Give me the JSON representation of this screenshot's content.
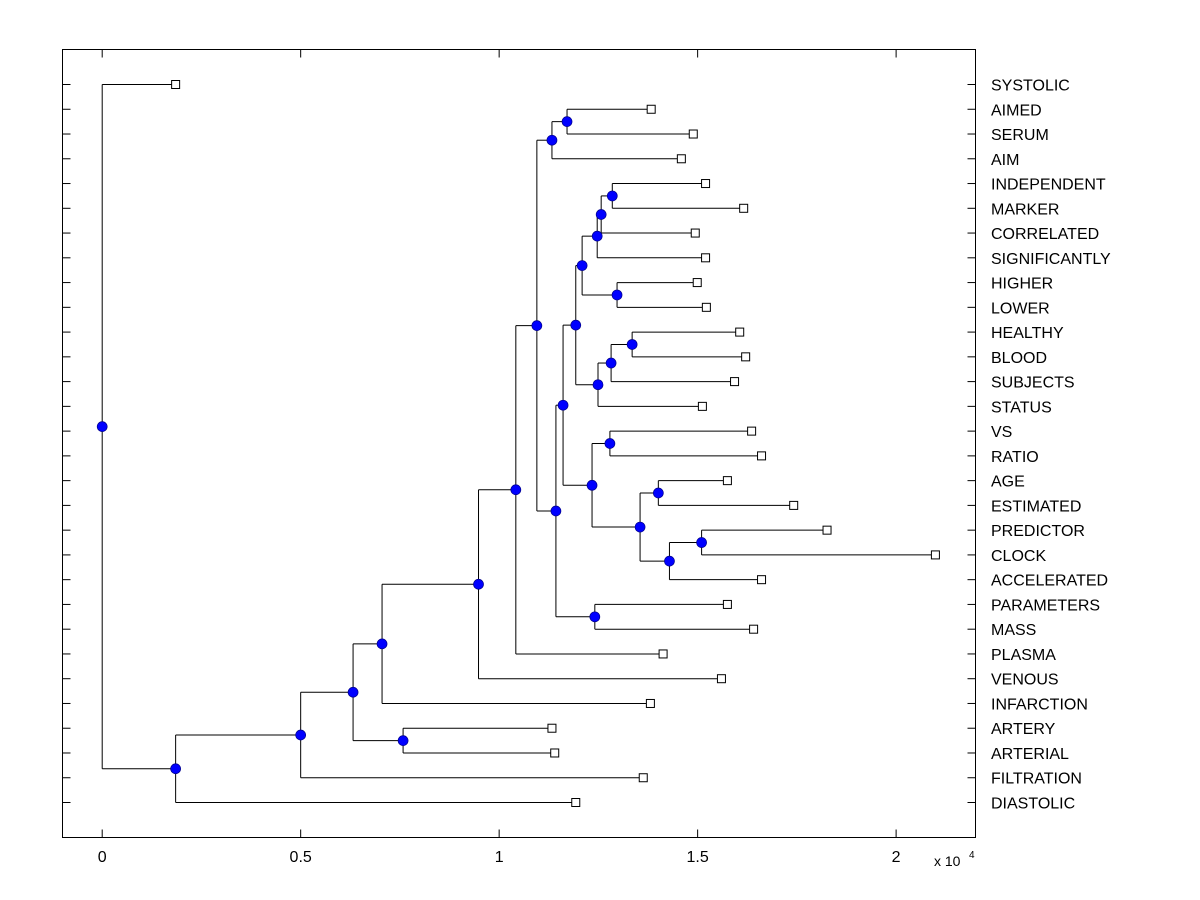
{
  "chart_data": {
    "type": "dendrogram",
    "title": "",
    "xlabel": "",
    "ylabel": "",
    "x_multiplier_label": "x 10",
    "x_multiplier_exponent": "4",
    "xlim": [
      -0.1,
      2.2
    ],
    "x_ticks": [
      0,
      0.5,
      1,
      1.5,
      2
    ],
    "x_tick_labels": [
      "0",
      "0.5",
      "1",
      "1.5",
      "2"
    ],
    "orientation": "left-to-right",
    "labels_side": "right",
    "colors": {
      "node": "#0000ff",
      "line": "#000000",
      "leaf_marker": "#ffffff"
    },
    "leaves": [
      {
        "label": "SYSTOLIC",
        "x": 0.185
      },
      {
        "label": "AIMED",
        "x": 1.383
      },
      {
        "label": "SERUM",
        "x": 1.489
      },
      {
        "label": "AIM",
        "x": 1.459
      },
      {
        "label": "INDEPENDENT",
        "x": 1.52
      },
      {
        "label": "MARKER",
        "x": 1.616
      },
      {
        "label": "CORRELATED",
        "x": 1.494
      },
      {
        "label": "SIGNIFICANTLY",
        "x": 1.52
      },
      {
        "label": "HIGHER",
        "x": 1.499
      },
      {
        "label": "LOWER",
        "x": 1.522
      },
      {
        "label": "HEALTHY",
        "x": 1.606
      },
      {
        "label": "BLOOD",
        "x": 1.621
      },
      {
        "label": "SUBJECTS",
        "x": 1.593
      },
      {
        "label": "STATUS",
        "x": 1.512
      },
      {
        "label": "VS",
        "x": 1.636
      },
      {
        "label": "RATIO",
        "x": 1.661
      },
      {
        "label": "AGE",
        "x": 1.575
      },
      {
        "label": "ESTIMATED",
        "x": 1.742
      },
      {
        "label": "PREDICTOR",
        "x": 1.826
      },
      {
        "label": "CLOCK",
        "x": 2.099
      },
      {
        "label": "ACCELERATED",
        "x": 1.661
      },
      {
        "label": "PARAMETERS",
        "x": 1.575
      },
      {
        "label": "MASS",
        "x": 1.641
      },
      {
        "label": "PLASMA",
        "x": 1.413
      },
      {
        "label": "VENOUS",
        "x": 1.56
      },
      {
        "label": "INFARCTION",
        "x": 1.381
      },
      {
        "label": "ARTERY",
        "x": 1.133
      },
      {
        "label": "ARTERIAL",
        "x": 1.14
      },
      {
        "label": "FILTRATION",
        "x": 1.363
      },
      {
        "label": "DIASTOLIC",
        "x": 1.193
      }
    ],
    "nodes": [
      {
        "id": "n_aimed_serum",
        "x": 1.171,
        "children": [
          "AIMED",
          "SERUM"
        ]
      },
      {
        "id": "n_aim",
        "x": 1.133,
        "children": [
          "n_aimed_serum",
          "AIM"
        ]
      },
      {
        "id": "n_indep_marker",
        "x": 1.285,
        "children": [
          "INDEPENDENT",
          "MARKER"
        ]
      },
      {
        "id": "n_correlated",
        "x": 1.257,
        "children": [
          "n_indep_marker",
          "CORRELATED"
        ]
      },
      {
        "id": "n_significantly",
        "x": 1.247,
        "children": [
          "n_correlated",
          "SIGNIFICANTLY"
        ]
      },
      {
        "id": "n_higher_lower",
        "x": 1.297,
        "children": [
          "HIGHER",
          "LOWER"
        ]
      },
      {
        "id": "n_upper_block",
        "x": 1.209,
        "children": [
          "n_significantly",
          "n_higher_lower"
        ]
      },
      {
        "id": "n_healthy_blood",
        "x": 1.335,
        "children": [
          "HEALTHY",
          "BLOOD"
        ]
      },
      {
        "id": "n_subjects",
        "x": 1.282,
        "children": [
          "n_healthy_blood",
          "SUBJECTS"
        ]
      },
      {
        "id": "n_status",
        "x": 1.249,
        "children": [
          "n_subjects",
          "STATUS"
        ]
      },
      {
        "id": "n_mid_block",
        "x": 1.193,
        "children": [
          "n_upper_block",
          "n_status"
        ]
      },
      {
        "id": "n_vs_ratio",
        "x": 1.279,
        "children": [
          "VS",
          "RATIO"
        ]
      },
      {
        "id": "n_age_estimated",
        "x": 1.401,
        "children": [
          "AGE",
          "ESTIMATED"
        ]
      },
      {
        "id": "n_predictor_clock",
        "x": 1.51,
        "children": [
          "PREDICTOR",
          "CLOCK"
        ]
      },
      {
        "id": "n_accelerated",
        "x": 1.429,
        "children": [
          "n_predictor_clock",
          "ACCELERATED"
        ]
      },
      {
        "id": "n_age_clock",
        "x": 1.355,
        "children": [
          "n_age_estimated",
          "n_accelerated"
        ]
      },
      {
        "id": "n_vs_clock",
        "x": 1.234,
        "children": [
          "n_vs_ratio",
          "n_age_clock"
        ]
      },
      {
        "id": "n_healthy_clock",
        "x": 1.161,
        "children": [
          "n_mid_block",
          "n_vs_clock"
        ]
      },
      {
        "id": "n_parameters_mass",
        "x": 1.241,
        "children": [
          "PARAMETERS",
          "MASS"
        ]
      },
      {
        "id": "n_big_block",
        "x": 1.143,
        "children": [
          "n_healthy_clock",
          "n_parameters_mass"
        ]
      },
      {
        "id": "n_aim_block",
        "x": 1.095,
        "children": [
          "n_aim",
          "n_big_block"
        ]
      },
      {
        "id": "n_plasma",
        "x": 1.042,
        "children": [
          "n_aim_block",
          "PLASMA"
        ]
      },
      {
        "id": "n_venous",
        "x": 0.948,
        "children": [
          "n_plasma",
          "VENOUS"
        ]
      },
      {
        "id": "n_infarction",
        "x": 0.705,
        "children": [
          "n_venous",
          "INFARCTION"
        ]
      },
      {
        "id": "n_artery_arterial",
        "x": 0.758,
        "children": [
          "ARTERY",
          "ARTERIAL"
        ]
      },
      {
        "id": "n_vessels",
        "x": 0.632,
        "children": [
          "n_infarction",
          "n_artery_arterial"
        ]
      },
      {
        "id": "n_filtration",
        "x": 0.5,
        "children": [
          "n_vessels",
          "FILTRATION"
        ]
      },
      {
        "id": "n_diastolic",
        "x": 0.185,
        "children": [
          "n_filtration",
          "DIASTOLIC"
        ]
      },
      {
        "id": "n_root",
        "x": 0.0,
        "children": [
          "SYSTOLIC",
          "n_diastolic"
        ]
      }
    ]
  }
}
